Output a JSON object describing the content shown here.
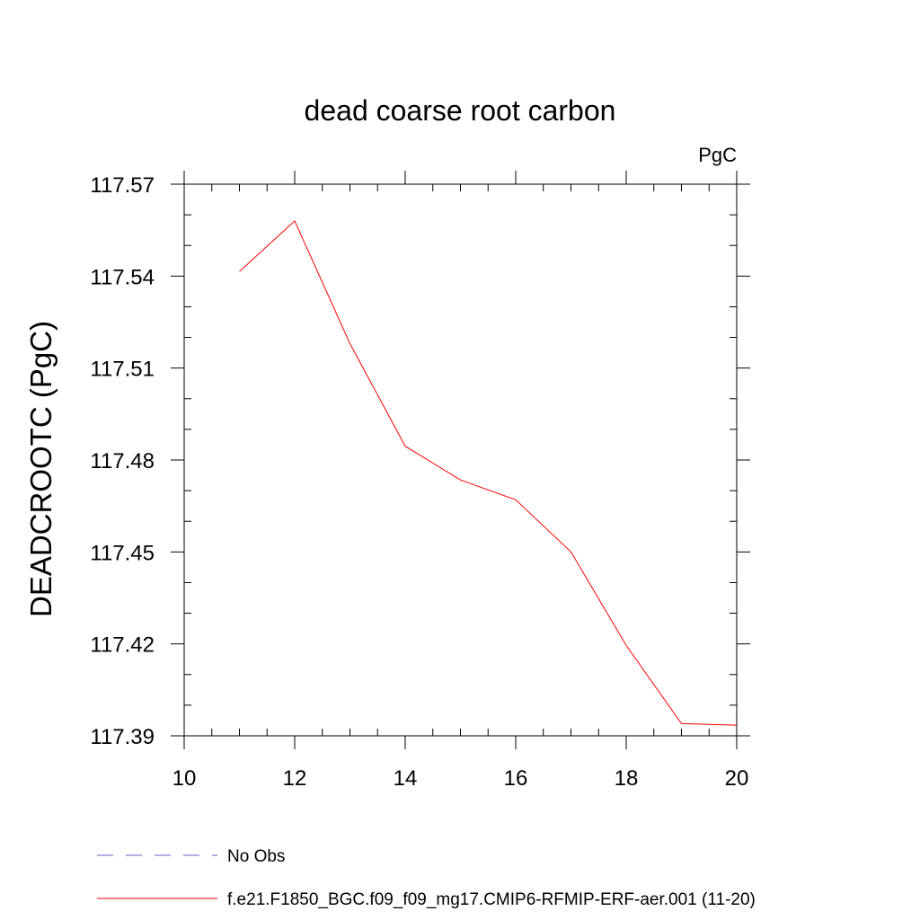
{
  "chart_data": {
    "type": "line",
    "title": "dead coarse root carbon",
    "units_label": "PgC",
    "xlabel": "",
    "ylabel": "DEADCROOTC  (PgC)",
    "xlim": [
      10,
      20
    ],
    "ylim": [
      117.39,
      117.57
    ],
    "x_ticks": [
      10,
      12,
      14,
      16,
      18,
      20
    ],
    "x_tick_labels": [
      "10",
      "12",
      "14",
      "16",
      "18",
      "20"
    ],
    "x_minor_step": 0.5,
    "y_ticks": [
      117.39,
      117.42,
      117.45,
      117.48,
      117.51,
      117.54,
      117.57
    ],
    "y_tick_labels": [
      "117.39",
      "117.42",
      "117.45",
      "117.48",
      "117.51",
      "117.54",
      "117.57"
    ],
    "y_minor_step": 0.01,
    "grid": false,
    "legend_position": "bottom",
    "series": [
      {
        "name": "No Obs",
        "color": "#6a5acd",
        "dash": true,
        "x": [],
        "y": []
      },
      {
        "name": "f.e21.F1850_BGC.f09_f09_mg17.CMIP6-RFMIP-ERF-aer.001 (11-20)",
        "color": "#ff0000",
        "dash": false,
        "x": [
          11,
          12,
          13,
          14,
          15,
          16,
          17,
          18,
          19,
          20
        ],
        "y": [
          117.5415,
          117.558,
          117.518,
          117.4845,
          117.4735,
          117.467,
          117.45,
          117.4195,
          117.394,
          117.3935
        ]
      }
    ]
  }
}
